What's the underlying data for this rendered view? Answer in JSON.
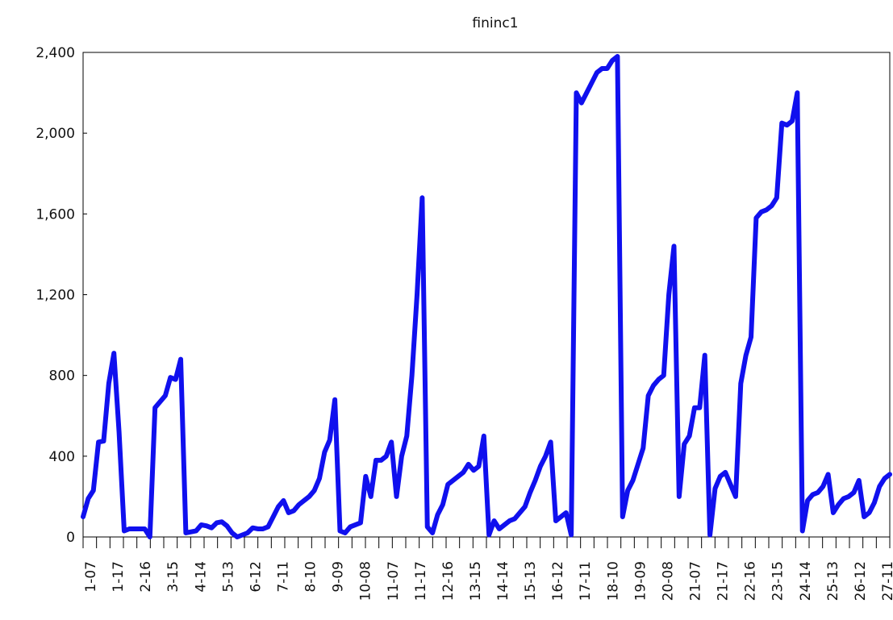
{
  "chart_data": {
    "type": "line",
    "title": "fininc1",
    "xlabel": "",
    "ylabel": "",
    "ylim": [
      0,
      2400
    ],
    "y_ticks": [
      "0",
      "400",
      "800",
      "1,200",
      "1,600",
      "2,000",
      "2,400"
    ],
    "x_tick_labels": [
      "1-07",
      "1-17",
      "2-16",
      "3-15",
      "4-14",
      "5-13",
      "6-12",
      "7-11",
      "8-10",
      "9-09",
      "10-08",
      "11-07",
      "11-17",
      "12-16",
      "13-15",
      "14-14",
      "15-13",
      "16-12",
      "17-11",
      "18-10",
      "19-09",
      "20-08",
      "21-07",
      "21-17",
      "22-16",
      "23-15",
      "24-14",
      "25-13",
      "26-12",
      "27-11"
    ],
    "grid": false,
    "line_color": "#1010ee",
    "series": [
      {
        "values": [
          100,
          190,
          230,
          470,
          475,
          760,
          910,
          520,
          30,
          40,
          40,
          40,
          40,
          0,
          640,
          670,
          700,
          790,
          780,
          880,
          20,
          25,
          30,
          60,
          55,
          45,
          70,
          75,
          55,
          20,
          0,
          10,
          20,
          45,
          40,
          40,
          50,
          100,
          150,
          180,
          120,
          130,
          160,
          180,
          200,
          230,
          290,
          420,
          480,
          680,
          30,
          20,
          50,
          60,
          70,
          300,
          200,
          380,
          380,
          400,
          470,
          200,
          400,
          500,
          800,
          1200,
          1680,
          50,
          20,
          110,
          160,
          260,
          280,
          300,
          320,
          360,
          330,
          350,
          500,
          10,
          80,
          40,
          60,
          80,
          90,
          120,
          150,
          220,
          280,
          350,
          400,
          470,
          80,
          100,
          120,
          10,
          2200,
          2150,
          2200,
          2250,
          2300,
          2320,
          2320,
          2360,
          2380,
          100,
          230,
          280,
          360,
          440,
          700,
          750,
          780,
          800,
          1200,
          1440,
          200,
          460,
          500,
          640,
          640,
          900,
          10,
          240,
          300,
          320,
          260,
          200,
          760,
          900,
          990,
          1580,
          1610,
          1620,
          1640,
          1680,
          2050,
          2040,
          2060,
          2200,
          30,
          180,
          210,
          220,
          250,
          310,
          120,
          160,
          190,
          200,
          220,
          280,
          100,
          120,
          170,
          250,
          290,
          310
        ]
      }
    ]
  }
}
